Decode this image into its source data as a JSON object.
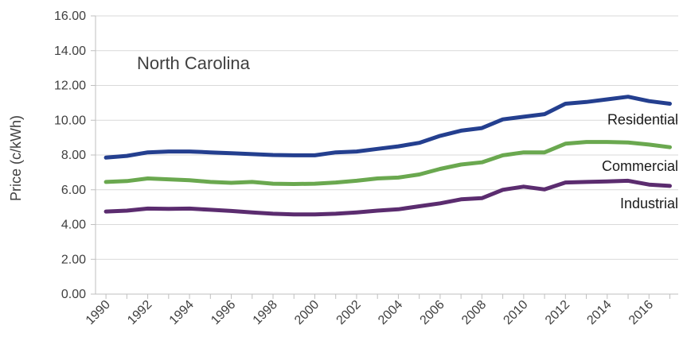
{
  "chart_data": {
    "type": "line",
    "annotation": "North Carolina",
    "ylabel": "Price (c/kWh)",
    "xlabel": "",
    "ylim": [
      0,
      16
    ],
    "yticks": [
      "0.00",
      "2.00",
      "4.00",
      "6.00",
      "8.00",
      "10.00",
      "12.00",
      "14.00",
      "16.00"
    ],
    "x": [
      1990,
      1991,
      1992,
      1993,
      1994,
      1995,
      1996,
      1997,
      1998,
      1999,
      2000,
      2001,
      2002,
      2003,
      2004,
      2005,
      2006,
      2007,
      2008,
      2009,
      2010,
      2011,
      2012,
      2013,
      2014,
      2015,
      2016,
      2017
    ],
    "xticks": [
      "1990",
      "1992",
      "1994",
      "1996",
      "1998",
      "2000",
      "2002",
      "2004",
      "2006",
      "2008",
      "2010",
      "2012",
      "2014",
      "2016"
    ],
    "grid": "horizontal",
    "series": [
      {
        "name": "Residential",
        "color": "#243f8f",
        "values": [
          7.85,
          7.95,
          8.15,
          8.2,
          8.2,
          8.15,
          8.1,
          8.05,
          8.0,
          7.98,
          7.98,
          8.15,
          8.2,
          8.35,
          8.5,
          8.7,
          9.1,
          9.4,
          9.55,
          10.05,
          10.2,
          10.35,
          10.95,
          11.05,
          11.2,
          11.35,
          11.1,
          10.95
        ]
      },
      {
        "name": "Commercial",
        "color": "#6aa84f",
        "values": [
          6.45,
          6.5,
          6.65,
          6.6,
          6.55,
          6.45,
          6.4,
          6.45,
          6.35,
          6.33,
          6.35,
          6.42,
          6.52,
          6.65,
          6.7,
          6.88,
          7.2,
          7.45,
          7.58,
          7.98,
          8.15,
          8.15,
          8.65,
          8.75,
          8.75,
          8.72,
          8.6,
          8.45
        ]
      },
      {
        "name": "Industrial",
        "color": "#5b2c6f",
        "values": [
          4.75,
          4.8,
          4.92,
          4.9,
          4.92,
          4.85,
          4.78,
          4.7,
          4.62,
          4.58,
          4.58,
          4.62,
          4.7,
          4.8,
          4.88,
          5.05,
          5.22,
          5.45,
          5.52,
          6.0,
          6.18,
          6.02,
          6.42,
          6.45,
          6.48,
          6.52,
          6.3,
          6.22
        ]
      }
    ]
  }
}
